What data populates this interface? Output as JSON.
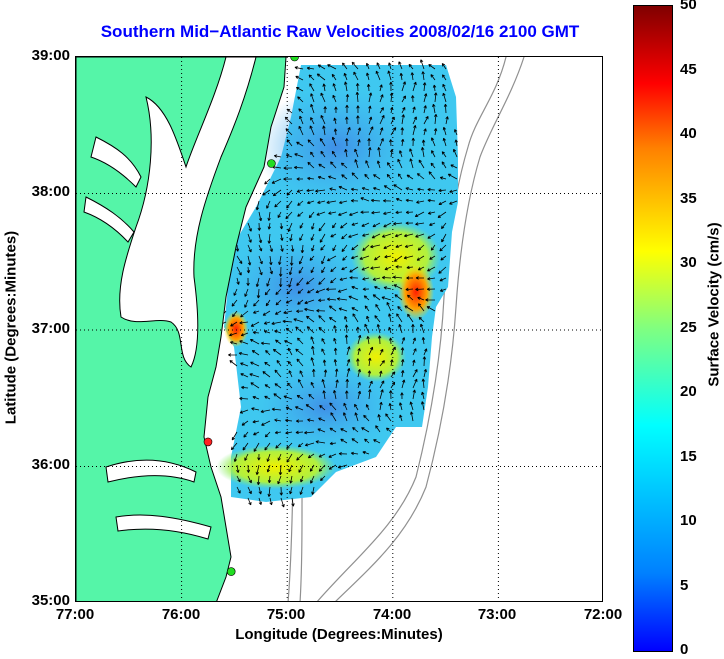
{
  "title": "Southern Mid−Atlantic Raw Velocities 2008/02/16 2100 GMT",
  "axes": {
    "xlabel": "Longitude (Degrees:Minutes)",
    "ylabel": "Latitude (Degrees:Minutes)",
    "x_ticks": [
      "77:00",
      "76:00",
      "75:00",
      "74:00",
      "73:00",
      "72:00"
    ],
    "y_ticks": [
      "39:00",
      "38:00",
      "37:00",
      "36:00",
      "35:00"
    ],
    "x_range_deg_west": [
      77,
      72
    ],
    "y_range_deg_north": [
      35,
      39
    ],
    "grid": "dotted"
  },
  "colorbar": {
    "label": "Surface Velocity (cm/s)",
    "ticks": [
      "50",
      "45",
      "40",
      "35",
      "30",
      "25",
      "20",
      "15",
      "10",
      "5",
      "0"
    ],
    "range": [
      0,
      50
    ],
    "colormap": "jet"
  },
  "colors": {
    "title": "#0000ff",
    "land": "#55f5a8",
    "coastline": "#000000",
    "bathymetry": "#909090",
    "station_green": "#22dd22",
    "station_red": "#ff2222"
  },
  "stations": [
    {
      "color": "green",
      "lon": 74.93,
      "lat": 39.0
    },
    {
      "color": "green",
      "lon": 75.15,
      "lat": 38.22
    },
    {
      "color": "red",
      "lon": 75.75,
      "lat": 36.18
    },
    {
      "color": "green",
      "lon": 75.53,
      "lat": 35.23
    }
  ]
}
